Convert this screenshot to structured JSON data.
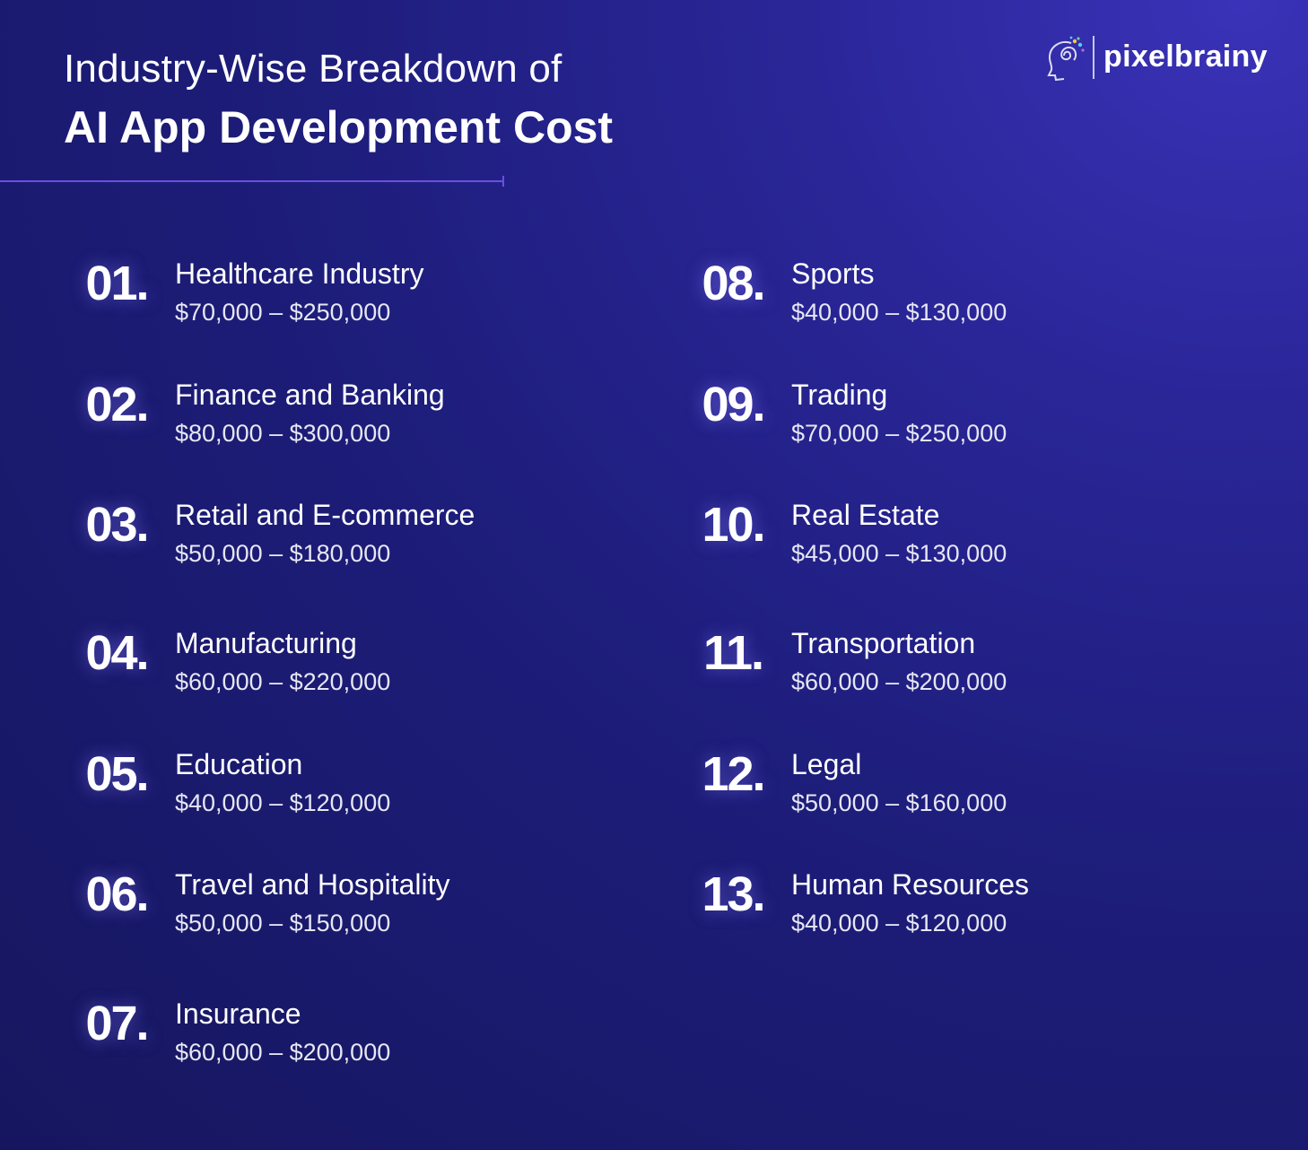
{
  "header": {
    "title_line1": "Industry-Wise Breakdown of",
    "title_line2": "AI App Development Cost"
  },
  "brand": {
    "name": "pixelbrainy",
    "icon": "brain-head-icon"
  },
  "colors": {
    "background": "#1d1d7a",
    "accent_line": "#6a4fe0",
    "text": "#ffffff"
  },
  "industries": [
    {
      "number": "01.",
      "name": "Healthcare Industry",
      "range": "$70,000 – $250,000"
    },
    {
      "number": "02.",
      "name": "Finance and Banking",
      "range": "$80,000 – $300,000"
    },
    {
      "number": "03.",
      "name": "Retail and E-commerce",
      "range": "$50,000 – $180,000"
    },
    {
      "number": "04.",
      "name": "Manufacturing",
      "range": "$60,000 – $220,000"
    },
    {
      "number": "05.",
      "name": "Education",
      "range": "$40,000 – $120,000"
    },
    {
      "number": "06.",
      "name": "Travel and Hospitality",
      "range": "$50,000 – $150,000"
    },
    {
      "number": "07.",
      "name": "Insurance",
      "range": "$60,000 – $200,000"
    },
    {
      "number": "08.",
      "name": "Sports",
      "range": "$40,000 – $130,000"
    },
    {
      "number": "09.",
      "name": "Trading",
      "range": "$70,000 – $250,000"
    },
    {
      "number": "10.",
      "name": "Real Estate",
      "range": "$45,000 – $130,000"
    },
    {
      "number": "11.",
      "name": "Transportation",
      "range": "$60,000 – $200,000"
    },
    {
      "number": "12.",
      "name": "Legal",
      "range": "$50,000 – $160,000"
    },
    {
      "number": "13.",
      "name": "Human Resources",
      "range": "$40,000 – $120,000"
    }
  ]
}
